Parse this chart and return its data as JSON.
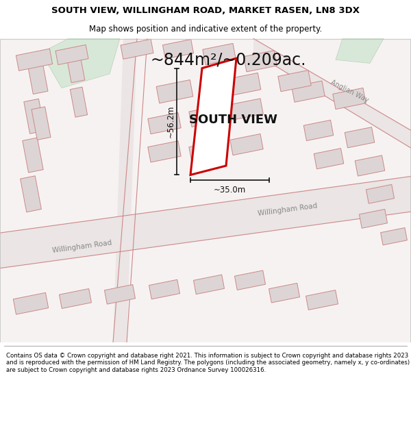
{
  "title": "SOUTH VIEW, WILLINGHAM ROAD, MARKET RASEN, LN8 3DX",
  "subtitle": "Map shows position and indicative extent of the property.",
  "area_text": "~844m²/~0.209ac.",
  "property_label": "SOUTH VIEW",
  "dim_vertical": "~56.2m",
  "dim_horizontal": "~35.0m",
  "footer": "Contains OS data © Crown copyright and database right 2021. This information is subject to Crown copyright and database rights 2023 and is reproduced with the permission of HM Land Registry. The polygons (including the associated geometry, namely x, y co-ordinates) are subject to Crown copyright and database rights 2023 Ordnance Survey 100026316.",
  "bg_color": "#f7f2f2",
  "title_fontsize": 9.5,
  "subtitle_fontsize": 8.5,
  "area_fontsize": 17,
  "label_fontsize": 13,
  "dim_fontsize": 8.5,
  "footer_fontsize": 6.2,
  "road_fill": "#ebe5e5",
  "building_fill": "#ddd5d5",
  "building_edge": "#cc8888",
  "road_edge": "#cc8888",
  "green_fill": "#d8e8d8",
  "property_edge": "#cc0000",
  "dim_color": "#111111"
}
